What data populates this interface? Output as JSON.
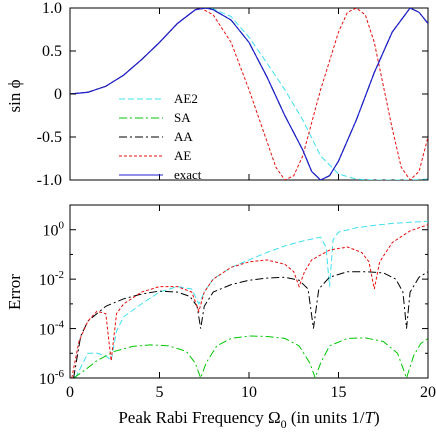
{
  "chart_data": [
    {
      "type": "line",
      "ylabel": "sin ϕ",
      "xlim": [
        0,
        20
      ],
      "ylim": [
        -1.0,
        1.0
      ],
      "y_ticks": [
        "-1.0",
        "-0.5",
        "0",
        "0.5",
        "1.0"
      ],
      "x_tick_labels_shown": false,
      "legend_position": "lower-left",
      "series": [
        {
          "name": "AE2",
          "color": "#40e0f0",
          "dash": "dashed",
          "points": [
            [
              0,
              0
            ],
            [
              1,
              0.02
            ],
            [
              2,
              0.09
            ],
            [
              3,
              0.22
            ],
            [
              4,
              0.4
            ],
            [
              5,
              0.6
            ],
            [
              6,
              0.82
            ],
            [
              7,
              0.98
            ],
            [
              7.5,
              1.0
            ],
            [
              8,
              0.99
            ],
            [
              9,
              0.9
            ],
            [
              10,
              0.66
            ],
            [
              11,
              0.36
            ],
            [
              12,
              0.05
            ],
            [
              13,
              -0.3
            ],
            [
              14,
              -0.72
            ],
            [
              15,
              -0.93
            ],
            [
              16,
              -0.99
            ],
            [
              17,
              -1.0
            ],
            [
              18,
              -1.0
            ],
            [
              19,
              -1.0
            ],
            [
              20,
              -0.99
            ]
          ]
        },
        {
          "name": "SA",
          "color": "#00c800",
          "dash": "dashdot",
          "points": [
            [
              0,
              0
            ],
            [
              1,
              0.02
            ],
            [
              2,
              0.09
            ],
            [
              3,
              0.22
            ],
            [
              4,
              0.4
            ],
            [
              5,
              0.6
            ],
            [
              6,
              0.82
            ],
            [
              7,
              0.98
            ],
            [
              7.6,
              1.0
            ],
            [
              8,
              0.98
            ],
            [
              9,
              0.86
            ],
            [
              10,
              0.6
            ],
            [
              11,
              0.2
            ],
            [
              12,
              -0.25
            ],
            [
              13,
              -0.65
            ],
            [
              13.5,
              -0.9
            ],
            [
              14,
              -1.0
            ],
            [
              14.5,
              -0.95
            ],
            [
              15,
              -0.78
            ],
            [
              16,
              -0.3
            ],
            [
              17,
              0.25
            ],
            [
              18,
              0.72
            ],
            [
              19,
              1.0
            ],
            [
              19.5,
              0.95
            ],
            [
              20,
              0.82
            ]
          ]
        },
        {
          "name": "AA",
          "color": "#000000",
          "dash": "dashdot",
          "points": [
            [
              0,
              0
            ],
            [
              1,
              0.02
            ],
            [
              2,
              0.09
            ],
            [
              3,
              0.22
            ],
            [
              4,
              0.4
            ],
            [
              5,
              0.6
            ],
            [
              6,
              0.82
            ],
            [
              7,
              0.98
            ],
            [
              7.6,
              1.0
            ],
            [
              8,
              0.98
            ],
            [
              9,
              0.86
            ],
            [
              10,
              0.6
            ],
            [
              11,
              0.2
            ],
            [
              12,
              -0.25
            ],
            [
              13,
              -0.65
            ],
            [
              13.5,
              -0.9
            ],
            [
              14,
              -1.0
            ],
            [
              14.5,
              -0.95
            ],
            [
              15,
              -0.78
            ],
            [
              16,
              -0.3
            ],
            [
              17,
              0.25
            ],
            [
              18,
              0.72
            ],
            [
              19,
              1.0
            ],
            [
              19.5,
              0.95
            ],
            [
              20,
              0.82
            ]
          ]
        },
        {
          "name": "AE",
          "color": "#e81010",
          "dash": "dotted",
          "points": [
            [
              0,
              0
            ],
            [
              1,
              0.02
            ],
            [
              2,
              0.09
            ],
            [
              3,
              0.22
            ],
            [
              4,
              0.4
            ],
            [
              5,
              0.6
            ],
            [
              6,
              0.82
            ],
            [
              7,
              0.98
            ],
            [
              7.3,
              1.0
            ],
            [
              8,
              0.92
            ],
            [
              9,
              0.6
            ],
            [
              10,
              0.05
            ],
            [
              11,
              -0.55
            ],
            [
              11.5,
              -0.85
            ],
            [
              12,
              -1.0
            ],
            [
              12.5,
              -0.95
            ],
            [
              13,
              -0.72
            ],
            [
              14,
              0.05
            ],
            [
              15,
              0.72
            ],
            [
              15.5,
              0.95
            ],
            [
              16,
              1.0
            ],
            [
              16.5,
              0.92
            ],
            [
              17,
              0.6
            ],
            [
              18,
              -0.4
            ],
            [
              18.5,
              -0.85
            ],
            [
              19,
              -1.0
            ],
            [
              19.5,
              -0.9
            ],
            [
              20,
              -0.5
            ]
          ]
        },
        {
          "name": "exact",
          "color": "#2020d0",
          "dash": "solid",
          "points": [
            [
              0,
              0
            ],
            [
              1,
              0.02
            ],
            [
              2,
              0.09
            ],
            [
              3,
              0.22
            ],
            [
              4,
              0.4
            ],
            [
              5,
              0.6
            ],
            [
              6,
              0.82
            ],
            [
              7,
              0.98
            ],
            [
              7.6,
              1.0
            ],
            [
              8,
              0.98
            ],
            [
              9,
              0.86
            ],
            [
              10,
              0.6
            ],
            [
              11,
              0.2
            ],
            [
              12,
              -0.25
            ],
            [
              13,
              -0.65
            ],
            [
              13.5,
              -0.9
            ],
            [
              14,
              -1.0
            ],
            [
              14.5,
              -0.95
            ],
            [
              15,
              -0.78
            ],
            [
              16,
              -0.3
            ],
            [
              17,
              0.25
            ],
            [
              18,
              0.72
            ],
            [
              19,
              1.0
            ],
            [
              19.5,
              0.95
            ],
            [
              20,
              0.82
            ]
          ]
        }
      ]
    },
    {
      "type": "line",
      "ylabel": "Error",
      "xlabel": "Peak Rabi Frequency Ω",
      "xlabel_sub": "0",
      "xlabel_tail": " (in units 1/",
      "xlabel_italic": "T",
      "xlabel_end": ")",
      "xlim": [
        0,
        20
      ],
      "x_ticks": [
        "0",
        "5",
        "10",
        "15",
        "20"
      ],
      "y_scale": "log",
      "ylim": [
        1e-06,
        10
      ],
      "y_ticks": [
        {
          "base": "10",
          "exp": "-6"
        },
        {
          "base": "10",
          "exp": "-4"
        },
        {
          "base": "10",
          "exp": "-2"
        },
        {
          "base": "10",
          "exp": "0"
        }
      ],
      "series": [
        {
          "name": "AE2",
          "color": "#40e0f0",
          "dash": "dashed",
          "points": [
            [
              0.3,
              1e-06
            ],
            [
              1,
              1e-05
            ],
            [
              1.5,
              1e-05
            ],
            [
              2,
              8e-06
            ],
            [
              2.3,
              5e-06
            ],
            [
              2.6,
              8e-05
            ],
            [
              3,
              0.0003
            ],
            [
              4,
              0.001
            ],
            [
              5,
              0.003
            ],
            [
              6,
              0.005
            ],
            [
              6.8,
              0.004
            ],
            [
              7.2,
              0.001
            ],
            [
              7.5,
              0.003
            ],
            [
              8,
              0.01
            ],
            [
              9,
              0.03
            ],
            [
              10,
              0.06
            ],
            [
              11,
              0.12
            ],
            [
              12,
              0.22
            ],
            [
              13,
              0.35
            ],
            [
              14,
              0.5
            ],
            [
              14.3,
              0.2
            ],
            [
              14.5,
              0.005
            ],
            [
              14.7,
              0.4
            ],
            [
              15,
              0.8
            ],
            [
              16,
              1.2
            ],
            [
              17,
              1.5
            ],
            [
              18,
              1.8
            ],
            [
              19,
              2.0
            ],
            [
              20,
              2.2
            ]
          ]
        },
        {
          "name": "SA",
          "color": "#00c800",
          "dash": "dashdot",
          "points": [
            [
              0.2,
              1e-06
            ],
            [
              0.8,
              2e-06
            ],
            [
              1.5,
              5e-06
            ],
            [
              2.5,
              1.2e-05
            ],
            [
              3.5,
              1.9e-05
            ],
            [
              4.5,
              2.2e-05
            ],
            [
              5.5,
              2e-05
            ],
            [
              6.5,
              1.2e-05
            ],
            [
              7.0,
              4e-06
            ],
            [
              7.3,
              1e-06
            ],
            [
              7.6,
              4e-06
            ],
            [
              8.2,
              2e-05
            ],
            [
              9,
              4e-05
            ],
            [
              10,
              5e-05
            ],
            [
              11,
              4.8e-05
            ],
            [
              12,
              4e-05
            ],
            [
              12.8,
              2e-05
            ],
            [
              13.4,
              4e-06
            ],
            [
              13.7,
              1e-06
            ],
            [
              14,
              4e-06
            ],
            [
              14.5,
              2e-05
            ],
            [
              15.5,
              4e-05
            ],
            [
              16.5,
              4.2e-05
            ],
            [
              17.5,
              3e-05
            ],
            [
              18.3,
              1e-05
            ],
            [
              18.8,
              1e-06
            ],
            [
              19.2,
              8e-06
            ],
            [
              19.6,
              2.5e-05
            ],
            [
              20,
              4e-05
            ]
          ]
        },
        {
          "name": "AA",
          "color": "#000000",
          "dash": "dashdot",
          "points": [
            [
              0.2,
              1e-06
            ],
            [
              0.6,
              5e-05
            ],
            [
              1,
              0.0002
            ],
            [
              2,
              0.0008
            ],
            [
              3,
              0.0016
            ],
            [
              4,
              0.0025
            ],
            [
              5,
              0.0033
            ],
            [
              6,
              0.003
            ],
            [
              6.7,
              0.002
            ],
            [
              7.1,
              0.0008
            ],
            [
              7.3,
              0.0001
            ],
            [
              7.5,
              0.0008
            ],
            [
              8,
              0.003
            ],
            [
              9,
              0.006
            ],
            [
              10,
              0.009
            ],
            [
              11,
              0.011
            ],
            [
              12,
              0.012
            ],
            [
              12.8,
              0.009
            ],
            [
              13.3,
              0.004
            ],
            [
              13.6,
              0.0001
            ],
            [
              13.9,
              0.004
            ],
            [
              14.5,
              0.012
            ],
            [
              15.5,
              0.02
            ],
            [
              16.5,
              0.02
            ],
            [
              17.5,
              0.018
            ],
            [
              18.2,
              0.01
            ],
            [
              18.6,
              0.003
            ],
            [
              18.8,
              0.0001
            ],
            [
              19,
              0.003
            ],
            [
              19.5,
              0.012
            ],
            [
              20,
              0.02
            ]
          ]
        },
        {
          "name": "AE",
          "color": "#e81010",
          "dash": "dotted",
          "points": [
            [
              0.1,
              1e-06
            ],
            [
              0.5,
              3e-05
            ],
            [
              1,
              0.0002
            ],
            [
              1.5,
              0.0005
            ],
            [
              2,
              0.0004
            ],
            [
              2.3,
              5e-06
            ],
            [
              2.6,
              0.0004
            ],
            [
              3,
              0.001
            ],
            [
              4,
              0.003
            ],
            [
              5,
              0.005
            ],
            [
              6,
              0.005
            ],
            [
              6.8,
              0.003
            ],
            [
              7.2,
              0.0005
            ],
            [
              7.5,
              0.003
            ],
            [
              8,
              0.01
            ],
            [
              9,
              0.03
            ],
            [
              10,
              0.05
            ],
            [
              11,
              0.06
            ],
            [
              12,
              0.04
            ],
            [
              12.5,
              0.02
            ],
            [
              12.8,
              0.005
            ],
            [
              13.1,
              0.02
            ],
            [
              13.5,
              0.06
            ],
            [
              14.5,
              0.15
            ],
            [
              15.5,
              0.2
            ],
            [
              16.3,
              0.12
            ],
            [
              16.7,
              0.05
            ],
            [
              17,
              0.004
            ],
            [
              17.3,
              0.05
            ],
            [
              18,
              0.3
            ],
            [
              19,
              0.9
            ],
            [
              20,
              1.6
            ]
          ]
        }
      ]
    }
  ]
}
